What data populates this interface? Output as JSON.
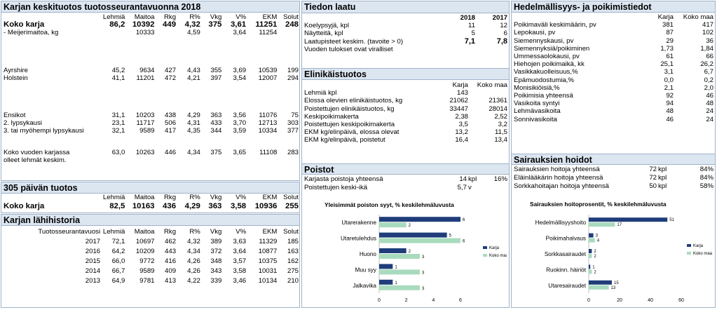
{
  "left": {
    "title": "Karjan keskituotos tuotosseurantavuonna 2018",
    "cols": [
      "Lehmiä",
      "Maitoa",
      "Rkg",
      "R%",
      "Vkg",
      "V%",
      "EKM",
      "Solut"
    ],
    "rows": [
      {
        "label": "Koko karja",
        "v": [
          "86,2",
          "10392",
          "449",
          "4,32",
          "375",
          "3,61",
          "11251",
          "248"
        ]
      },
      {
        "label": "- Meijerimaitoa, kg",
        "v": [
          "",
          "10333",
          "",
          "4,59",
          "",
          "3,64",
          "11254",
          ""
        ]
      },
      {
        "label": "Ayrshire",
        "v": [
          "45,2",
          "9634",
          "427",
          "4,43",
          "355",
          "3,69",
          "10539",
          "199"
        ]
      },
      {
        "label": "Holstein",
        "v": [
          "41,1",
          "11201",
          "472",
          "4,21",
          "397",
          "3,54",
          "12007",
          "294"
        ]
      },
      {
        "label": "Ensikot",
        "v": [
          "31,1",
          "10203",
          "438",
          "4,29",
          "363",
          "3,56",
          "11076",
          "75"
        ]
      },
      {
        "label": "2. lypsykausi",
        "v": [
          "23,1",
          "11717",
          "506",
          "4,31",
          "433",
          "3,70",
          "12713",
          "303"
        ]
      },
      {
        "label": "3. tai myöhempi lypsykausi",
        "v": [
          "32,1",
          "9589",
          "417",
          "4,35",
          "344",
          "3,59",
          "10334",
          "377"
        ]
      },
      {
        "label": "Koko vuoden karjassa",
        "v": [
          "63,0",
          "10263",
          "446",
          "4,34",
          "375",
          "3,65",
          "11108",
          "283"
        ]
      },
      {
        "label": "olleet lehmät keskim.",
        "v": [
          "",
          "",
          "",
          "",
          "",
          "",
          "",
          ""
        ]
      }
    ]
  },
  "p305": {
    "title": "305 päivän tuotos",
    "cols": [
      "Lehmiä",
      "Maitoa",
      "Rkg",
      "R%",
      "Vkg",
      "V%",
      "EKM",
      "Solut"
    ],
    "row": {
      "label": "Koko karja",
      "v": [
        "82,5",
        "10163",
        "436",
        "4,29",
        "363",
        "3,58",
        "10936",
        "255"
      ]
    }
  },
  "history": {
    "title": "Karjan lähihistoria",
    "cols": [
      "Tuotosseurantavuosi",
      "Lehmiä",
      "Maitoa",
      "Rkg",
      "R%",
      "Vkg",
      "V%",
      "EKM",
      "Solut"
    ],
    "rows": [
      [
        "2017",
        "72,1",
        "10697",
        "462",
        "4,32",
        "389",
        "3,63",
        "11329",
        "185"
      ],
      [
        "2016",
        "64,2",
        "10209",
        "443",
        "4,34",
        "372",
        "3,64",
        "10877",
        "163"
      ],
      [
        "2015",
        "66,0",
        "9772",
        "416",
        "4,26",
        "348",
        "3,57",
        "10375",
        "162"
      ],
      [
        "2014",
        "66,7",
        "9589",
        "409",
        "4,26",
        "343",
        "3,58",
        "10031",
        "275"
      ],
      [
        "2013",
        "64,9",
        "9781",
        "413",
        "4,22",
        "339",
        "3,46",
        "10134",
        "210"
      ]
    ]
  },
  "quality": {
    "title": "Tiedon laatu",
    "years": [
      "2018",
      "2017"
    ],
    "rows": [
      {
        "label": "Koelypsyjä, kpl",
        "a": "11",
        "b": "12"
      },
      {
        "label": "Näytteitä, kpl",
        "a": "5",
        "b": "6"
      },
      {
        "label": "Laatupisteet keskim. (tavoite > 0)",
        "a": "7,1",
        "b": "7,8"
      },
      {
        "label": "Vuoden tulokset ovat viralliset",
        "a": "",
        "b": ""
      }
    ]
  },
  "life": {
    "title": "Elinikäistuotos",
    "cols": [
      "Karja",
      "Koko maa"
    ],
    "rows": [
      {
        "label": "Lehmiä kpl",
        "a": "143",
        "b": ""
      },
      {
        "label": "Elossa olevien elinikäistuotos, kg",
        "a": "21062",
        "b": "21361"
      },
      {
        "label": "Poistettujen elinikäistuotos, kg",
        "a": "33447",
        "b": "28014"
      },
      {
        "label": "Keskipoikimakerta",
        "a": "2,38",
        "b": "2,52"
      },
      {
        "label": "Poistettujen keskipoikimakerta",
        "a": "3,5",
        "b": "3,2"
      },
      {
        "label": "EKM kg/elinpäivä, elossa olevat",
        "a": "13,2",
        "b": "11,5"
      },
      {
        "label": "EKM kg/elinpäivä, poistetut",
        "a": "16,4",
        "b": "13,4"
      }
    ]
  },
  "removals": {
    "title": "Poistot",
    "rows": [
      {
        "label": "Karjasta poistoja yhteensä",
        "a": "14",
        "u": "kpl",
        "p": "16%"
      },
      {
        "label": "Poistettujen keski-ikä",
        "a": "5,7",
        "u": "v",
        "p": ""
      }
    ]
  },
  "fert": {
    "title": "Hedelmällisyys- ja poikimistiedot",
    "cols": [
      "Karja",
      "Koko maa"
    ],
    "rows": [
      {
        "label": "Poikimaväli keskimäärin, pv",
        "a": "381",
        "b": "417"
      },
      {
        "label": "Lepokausi, pv",
        "a": "87",
        "b": "102"
      },
      {
        "label": "Siemennyskausi, pv",
        "a": "29",
        "b": "36"
      },
      {
        "label": "Siemennyksiä/poikiminen",
        "a": "1,73",
        "b": "1,84"
      },
      {
        "label": "Ummessaolokausi, pv",
        "a": "61",
        "b": "66"
      },
      {
        "label": "Hiehojen poikimaikä, kk",
        "a": "25,1",
        "b": "26,2"
      },
      {
        "label": "Vasikkakuolleisuus,%",
        "a": "3,1",
        "b": "6,7"
      },
      {
        "label": "Epämuodostumia,%",
        "a": "0,0",
        "b": "0,2"
      },
      {
        "label": "Monisikiöisiä,%",
        "a": "2,1",
        "b": "2,0"
      },
      {
        "label": "Poikimisia yhteensä",
        "a": "92",
        "b": "46"
      },
      {
        "label": "Vasikoita syntyi",
        "a": "94",
        "b": "48"
      },
      {
        "label": "Lehmävasikoita",
        "a": "48",
        "b": "24"
      },
      {
        "label": "Sonnivasikoita",
        "a": "46",
        "b": "24"
      }
    ]
  },
  "disease": {
    "title": "Sairauksien hoidot",
    "rows": [
      {
        "label": "Sairauksien hoitoja yhteensä",
        "a": "72",
        "u": "kpl",
        "p": "84%"
      },
      {
        "label": "Eläinlääkärin hoitoja yhteensä",
        "a": "72",
        "u": "kpl",
        "p": "84%"
      },
      {
        "label": "Sorkkahoitajan hoitoja yhteensä",
        "a": "50",
        "u": "kpl",
        "p": "58%"
      }
    ]
  },
  "colors": {
    "karja": "#1f3d7a",
    "koko_maa": "#a8dbbd",
    "header_bg": "#dce6f1",
    "border": "#9fb2c8"
  },
  "chart_data": [
    {
      "type": "bar",
      "orientation": "horizontal",
      "title": "Yleisimmät poiston syyt, % keskilehmäluvusta",
      "categories": [
        "Utarerakenne",
        "Utaretulehdus",
        "Huono",
        "Muu syy",
        "Jalkavika"
      ],
      "series": [
        {
          "name": "Karja",
          "values": [
            6,
            5,
            2,
            1,
            1
          ]
        },
        {
          "name": "Koko maa",
          "values": [
            2,
            6,
            3,
            3,
            3
          ]
        }
      ],
      "xlim": [
        0,
        6
      ],
      "xticks": [
        "0",
        "2",
        "4",
        "6"
      ],
      "legend": "right"
    },
    {
      "type": "bar",
      "orientation": "horizontal",
      "title": "Sairauksien hoitoprosentit, % keskilehmäluvusta",
      "categories": [
        "Hedelmällisyyshoito",
        "Poikimahalvaus",
        "Sorkkasairaudet",
        "Ruokinn. häiriöt",
        "Utaresairaudet"
      ],
      "series": [
        {
          "name": "Karja",
          "values": [
            51,
            3,
            2,
            1,
            15
          ]
        },
        {
          "name": "Koko maa",
          "values": [
            17,
            4,
            2,
            2,
            13
          ]
        }
      ],
      "xlim": [
        0,
        60
      ],
      "xticks": [
        "0",
        "20",
        "40",
        "60"
      ],
      "legend": "right"
    }
  ]
}
